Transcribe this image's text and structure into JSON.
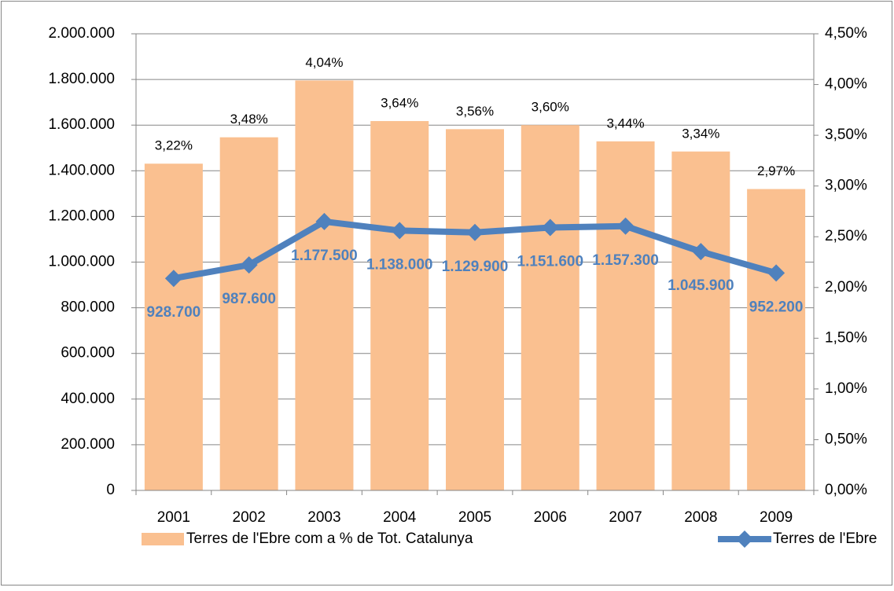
{
  "chart_data": {
    "type": "bar",
    "categories": [
      "2001",
      "2002",
      "2003",
      "2004",
      "2005",
      "2006",
      "2007",
      "2008",
      "2009"
    ],
    "series": [
      {
        "name": "Terres de l'Ebre com a % de Tot. Catalunya",
        "type": "bar",
        "axis": "y2",
        "color": "#fac090",
        "values": [
          3.22,
          3.48,
          4.04,
          3.64,
          3.56,
          3.6,
          3.44,
          3.34,
          2.97
        ],
        "value_labels": [
          "3,22%",
          "3,48%",
          "4,04%",
          "3,64%",
          "3,56%",
          "3,60%",
          "3,44%",
          "3,34%",
          "2,97%"
        ]
      },
      {
        "name": "Terres de l'Ebre",
        "type": "line",
        "axis": "y",
        "color": "#4f81bd",
        "values": [
          928700,
          987600,
          1177500,
          1138000,
          1129900,
          1151600,
          1157300,
          1045900,
          952200
        ],
        "value_labels": [
          "928.700",
          "987.600",
          "1.177.500",
          "1.138.000",
          "1.129.900",
          "1.151.600",
          "1.157.300",
          "1.045.900",
          "952.200"
        ]
      }
    ],
    "ylim": [
      0,
      2000000
    ],
    "yticks": [
      0,
      {
        "value": 200000,
        "label": "200.000"
      },
      {
        "value": 400000,
        "label": "400.000"
      },
      {
        "value": 600000,
        "label": "600.000"
      },
      {
        "value": 800000,
        "label": "800.000"
      },
      {
        "value": 1000000,
        "label": "1.000.000"
      },
      {
        "value": 1200000,
        "label": "1.200.000"
      },
      {
        "value": 1400000,
        "label": "1.400.000"
      },
      {
        "value": 1600000,
        "label": "1.600.000"
      },
      {
        "value": 1800000,
        "label": "1.800.000"
      },
      {
        "value": 2000000,
        "label": "2.000.000"
      }
    ],
    "y2lim": [
      0,
      4.5
    ],
    "y2ticks": [
      {
        "value": 0,
        "label": "0,00%"
      },
      {
        "value": 0.5,
        "label": "0,50%"
      },
      {
        "value": 1,
        "label": "1,00%"
      },
      {
        "value": 1.5,
        "label": "1,50%"
      },
      {
        "value": 2,
        "label": "2,00%"
      },
      {
        "value": 2.5,
        "label": "2,50%"
      },
      {
        "value": 3,
        "label": "3,00%"
      },
      {
        "value": 3.5,
        "label": "3,50%"
      },
      {
        "value": 4,
        "label": "4,00%"
      },
      {
        "value": 4.5,
        "label": "4,50%"
      }
    ],
    "grid": true,
    "legend": "bottom"
  }
}
